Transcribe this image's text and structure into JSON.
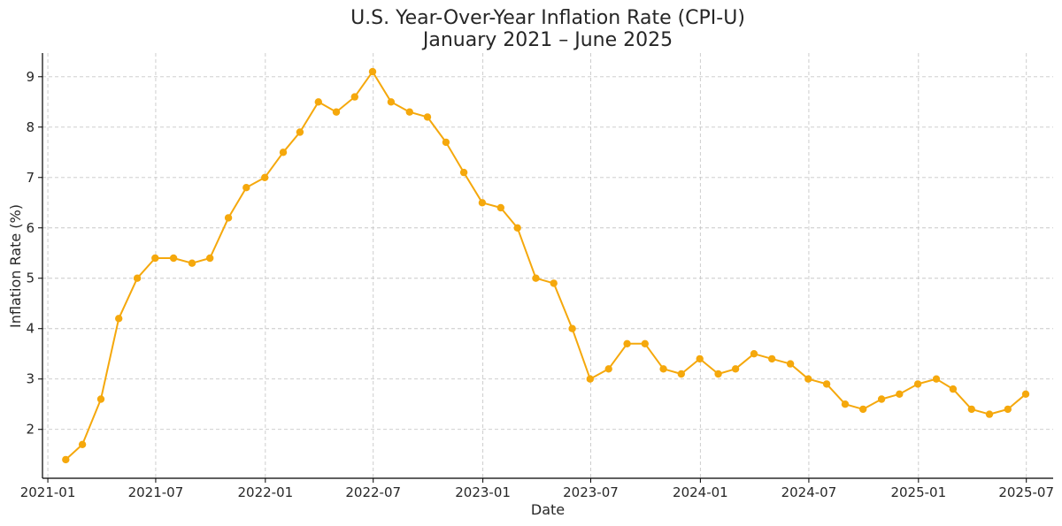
{
  "chart_data": {
    "type": "line",
    "title": "U.S. Year-Over-Year Inflation Rate (CPI-U)",
    "subtitle": "January 2021 – June 2025",
    "xlabel": "Date",
    "ylabel": "Inflation Rate (%)",
    "color": "#F5A80C",
    "grid": true,
    "xlim": [
      "2020-12-23",
      "2025-08-15"
    ],
    "ylim": [
      1.03,
      9.47
    ],
    "x_ticks": [
      "2021-01",
      "2021-07",
      "2022-01",
      "2022-07",
      "2023-01",
      "2023-07",
      "2024-01",
      "2024-07",
      "2025-01",
      "2025-07"
    ],
    "y_ticks": [
      2,
      3,
      4,
      5,
      6,
      7,
      8,
      9
    ],
    "series": [
      {
        "x": [
          "2021-01-31",
          "2021-02-28",
          "2021-03-31",
          "2021-04-30",
          "2021-05-31",
          "2021-06-30",
          "2021-07-31",
          "2021-08-31",
          "2021-09-30",
          "2021-10-31",
          "2021-11-30",
          "2021-12-31",
          "2022-01-31",
          "2022-02-28",
          "2022-03-31",
          "2022-04-30",
          "2022-05-31",
          "2022-06-30",
          "2022-07-31",
          "2022-08-31",
          "2022-09-30",
          "2022-10-31",
          "2022-11-30",
          "2022-12-31",
          "2023-01-31",
          "2023-02-28",
          "2023-03-31",
          "2023-04-30",
          "2023-05-31",
          "2023-06-30",
          "2023-07-31",
          "2023-08-31",
          "2023-09-30",
          "2023-10-31",
          "2023-11-30",
          "2023-12-31",
          "2024-01-31",
          "2024-02-29",
          "2024-03-31",
          "2024-04-30",
          "2024-05-31",
          "2024-06-30",
          "2024-07-31",
          "2024-08-31",
          "2024-09-30",
          "2024-10-31",
          "2024-11-30",
          "2024-12-31",
          "2025-01-31",
          "2025-02-28",
          "2025-03-31",
          "2025-04-30",
          "2025-05-31",
          "2025-06-30"
        ],
        "y": [
          1.4,
          1.7,
          2.6,
          4.2,
          5.0,
          5.4,
          5.4,
          5.3,
          5.4,
          6.2,
          6.8,
          7.0,
          7.5,
          7.9,
          8.5,
          8.3,
          8.6,
          9.1,
          8.5,
          8.3,
          8.2,
          7.7,
          7.1,
          6.5,
          6.4,
          6.0,
          5.0,
          4.9,
          4.0,
          3.0,
          3.2,
          3.7,
          3.7,
          3.2,
          3.1,
          3.4,
          3.1,
          3.2,
          3.5,
          3.4,
          3.3,
          3.0,
          2.9,
          2.5,
          2.4,
          2.6,
          2.7,
          2.9,
          3.0,
          2.8,
          2.4,
          2.3,
          2.4,
          2.7
        ]
      }
    ]
  }
}
